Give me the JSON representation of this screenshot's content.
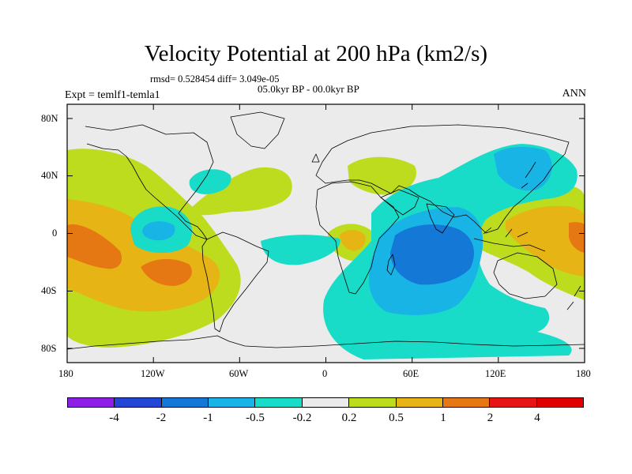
{
  "title": "Velocity Potential at 200 hPa (km2/s)",
  "stats": "rmsd= 0.528454 diff= 3.049e-05",
  "period": "05.0kyr BP - 00.0kyr BP",
  "experiment": "Expt = temlf1-temla1",
  "season": "ANN",
  "axes": {
    "lat_labels": [
      "80N",
      "40N",
      "0",
      "40S",
      "80S"
    ],
    "lon_labels": [
      "180",
      "120W",
      "60W",
      "0",
      "60E",
      "120E",
      "180"
    ]
  },
  "colorbar": {
    "labels": [
      "-4",
      "-2",
      "-1",
      "-0.5",
      "-0.2",
      "0.2",
      "0.5",
      "1",
      "2",
      "4"
    ],
    "colors": [
      "#8c1ee6",
      "#2346d7",
      "#1478d7",
      "#19b4e6",
      "#19dcc8",
      "#ebebeb",
      "#bedc1e",
      "#e6b414",
      "#e67814",
      "#e61414",
      "#e00000"
    ]
  },
  "field_colors": {
    "neutral": "#ebebeb",
    "pos_weak": "#bedc1e",
    "pos_mid": "#e6b414",
    "pos_strong": "#e67814",
    "neg_weak": "#19dcc8",
    "neg_mid": "#19b4e6",
    "neg_strong": "#1478d7"
  }
}
